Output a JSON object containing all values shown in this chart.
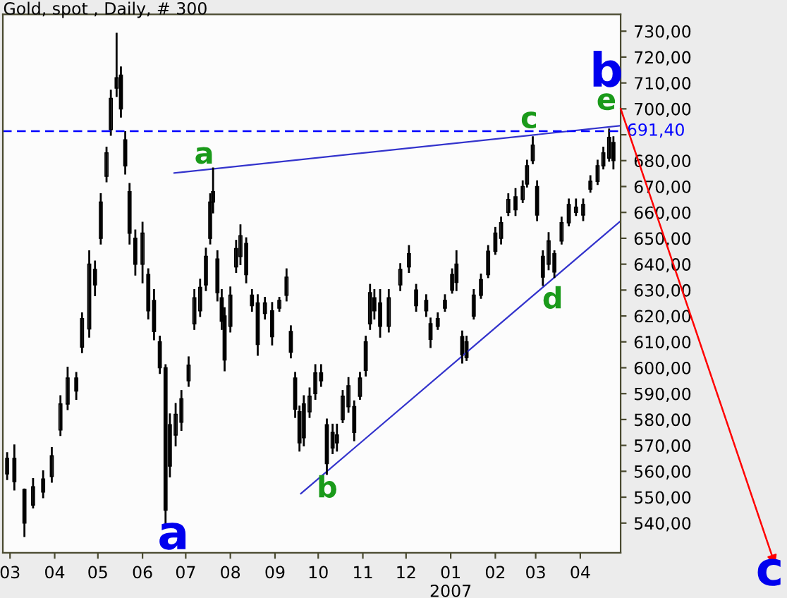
{
  "chart_data": {
    "type": "candlestick",
    "title": "Gold, spot , Daily, # 300",
    "color": "#000000",
    "x": [
      "2006-02-27",
      "2006-03-04",
      "2006-03-11",
      "2006-03-17",
      "2006-03-24",
      "2006-03-30",
      "2006-04-05",
      "2006-04-10",
      "2006-04-16",
      "2006-04-20",
      "2006-04-25",
      "2006-04-29",
      "2006-05-03",
      "2006-05-07",
      "2006-05-10",
      "2006-05-14",
      "2006-05-17",
      "2006-05-20",
      "2006-05-23",
      "2006-05-27",
      "2006-06-01",
      "2006-06-05",
      "2006-06-09",
      "2006-06-13",
      "2006-06-17",
      "2006-06-20",
      "2006-06-24",
      "2006-06-28",
      "2006-07-03",
      "2006-07-07",
      "2006-07-11",
      "2006-07-15",
      "2006-07-18",
      "2006-07-20",
      "2006-07-23",
      "2006-07-26",
      "2006-07-28",
      "2006-08-01",
      "2006-08-05",
      "2006-08-08",
      "2006-08-12",
      "2006-08-16",
      "2006-08-20",
      "2006-08-25",
      "2006-08-30",
      "2006-09-04",
      "2006-09-09",
      "2006-09-12",
      "2006-09-15",
      "2006-09-18",
      "2006-09-21",
      "2006-09-25",
      "2006-09-29",
      "2006-10-03",
      "2006-10-07",
      "2006-10-11",
      "2006-10-14",
      "2006-10-18",
      "2006-10-22",
      "2006-10-26",
      "2006-10-30",
      "2006-11-03",
      "2006-11-06",
      "2006-11-09",
      "2006-11-13",
      "2006-11-19",
      "2006-11-27",
      "2006-12-03",
      "2006-12-08",
      "2006-12-15",
      "2006-12-18",
      "2006-12-23",
      "2006-12-28",
      "2007-01-02",
      "2007-01-05",
      "2007-01-09",
      "2007-01-12",
      "2007-01-17",
      "2007-01-22",
      "2007-01-27",
      "2007-02-01",
      "2007-02-05",
      "2007-02-10",
      "2007-02-15",
      "2007-02-20",
      "2007-02-23",
      "2007-02-27",
      "2007-03-02",
      "2007-03-06",
      "2007-03-10",
      "2007-03-14",
      "2007-03-19",
      "2007-03-24",
      "2007-03-29",
      "2007-04-03",
      "2007-04-08",
      "2007-04-13",
      "2007-04-17",
      "2007-04-21",
      "2007-04-24"
    ],
    "ohlc": [
      [
        559,
        567,
        557,
        565
      ],
      [
        565,
        570,
        553,
        556
      ],
      [
        553,
        553,
        535,
        540
      ],
      [
        547,
        557,
        546,
        554
      ],
      [
        552,
        560,
        550,
        557
      ],
      [
        558,
        569,
        556,
        566
      ],
      [
        576,
        589,
        574,
        586
      ],
      [
        586,
        600,
        584,
        596
      ],
      [
        596,
        598,
        588,
        591
      ],
      [
        608,
        621,
        606,
        619
      ],
      [
        615,
        645,
        612,
        640
      ],
      [
        638,
        641,
        628,
        632
      ],
      [
        650,
        667,
        648,
        664
      ],
      [
        674,
        685,
        672,
        683
      ],
      [
        692,
        707,
        690,
        704
      ],
      [
        708,
        729,
        705,
        712
      ],
      [
        713,
        716,
        697,
        700
      ],
      [
        688,
        691,
        675,
        678
      ],
      [
        668,
        671,
        648,
        652
      ],
      [
        650,
        653,
        636,
        640
      ],
      [
        640,
        656,
        633,
        652
      ],
      [
        636,
        638,
        619,
        622
      ],
      [
        626,
        630,
        611,
        614
      ],
      [
        610,
        612,
        598,
        600
      ],
      [
        600,
        601,
        540,
        545
      ],
      [
        562,
        582,
        558,
        578
      ],
      [
        574,
        586,
        570,
        582
      ],
      [
        579,
        591,
        576,
        588
      ],
      [
        595,
        604,
        593,
        601
      ],
      [
        617,
        630,
        615,
        627
      ],
      [
        622,
        634,
        620,
        631
      ],
      [
        632,
        646,
        630,
        643
      ],
      [
        650,
        667,
        648,
        664
      ],
      [
        664,
        677,
        660,
        668
      ],
      [
        642,
        645,
        626,
        629
      ],
      [
        627,
        630,
        615,
        618
      ],
      [
        620,
        623,
        599,
        603
      ],
      [
        616,
        631,
        614,
        628
      ],
      [
        639,
        649,
        637,
        646
      ],
      [
        643,
        655,
        640,
        651
      ],
      [
        648,
        650,
        633,
        636
      ],
      [
        628,
        630,
        622,
        624
      ],
      [
        625,
        628,
        605,
        609
      ],
      [
        621,
        627,
        619,
        625
      ],
      [
        622,
        625,
        609,
        612
      ],
      [
        623,
        627,
        622,
        626
      ],
      [
        628,
        638,
        626,
        635
      ],
      [
        614,
        616,
        604,
        606
      ],
      [
        596,
        598,
        581,
        584
      ],
      [
        583,
        585,
        568,
        571
      ],
      [
        573,
        589,
        570,
        586
      ],
      [
        583,
        592,
        581,
        589
      ],
      [
        590,
        601,
        588,
        598
      ],
      [
        598,
        601,
        593,
        595
      ],
      [
        578,
        580,
        559,
        563
      ],
      [
        569,
        578,
        567,
        575
      ],
      [
        571,
        578,
        568,
        574
      ],
      [
        580,
        591,
        579,
        589
      ],
      [
        585,
        596,
        583,
        593
      ],
      [
        585,
        587,
        572,
        575
      ],
      [
        589,
        598,
        588,
        596
      ],
      [
        599,
        612,
        597,
        610
      ],
      [
        617,
        632,
        615,
        629
      ],
      [
        627,
        630,
        619,
        622
      ],
      [
        625,
        630,
        612,
        616
      ],
      [
        616,
        630,
        614,
        627
      ],
      [
        632,
        640,
        630,
        638
      ],
      [
        639,
        647,
        637,
        644
      ],
      [
        630,
        632,
        622,
        624
      ],
      [
        626,
        628,
        620,
        622
      ],
      [
        617,
        619,
        608,
        611
      ],
      [
        616,
        621,
        615,
        619
      ],
      [
        623,
        628,
        622,
        626
      ],
      [
        630,
        638,
        629,
        636
      ],
      [
        640,
        645,
        630,
        633
      ],
      [
        612,
        614,
        602,
        605
      ],
      [
        604,
        612,
        603,
        610
      ],
      [
        620,
        630,
        619,
        628
      ],
      [
        628,
        636,
        627,
        634
      ],
      [
        636,
        647,
        635,
        645
      ],
      [
        645,
        654,
        644,
        652
      ],
      [
        650,
        658,
        648,
        656
      ],
      [
        660,
        667,
        659,
        665
      ],
      [
        666,
        669,
        659,
        661
      ],
      [
        665,
        672,
        664,
        670
      ],
      [
        671,
        680,
        670,
        678
      ],
      [
        680,
        689,
        679,
        686
      ],
      [
        670,
        672,
        657,
        659
      ],
      [
        643,
        645,
        632,
        635
      ],
      [
        640,
        652,
        638,
        649
      ],
      [
        644,
        645,
        635,
        637
      ],
      [
        649,
        658,
        648,
        656
      ],
      [
        656,
        665,
        655,
        663
      ],
      [
        660,
        665,
        659,
        662
      ],
      [
        659,
        665,
        657,
        663
      ],
      [
        669,
        674,
        668,
        672
      ],
      [
        672,
        680,
        671,
        678
      ],
      [
        678,
        685,
        677,
        683
      ],
      [
        681,
        692,
        680,
        689
      ],
      [
        687,
        689,
        677,
        680
      ]
    ],
    "series": [
      {
        "type": "line",
        "color": "#3333cc",
        "x": [
          "2006-06-23",
          "2007-04-29"
        ],
        "values": [
          675.2,
          693.5
        ]
      },
      {
        "type": "line",
        "color": "#3333cc",
        "x": [
          "2006-09-19",
          "2007-04-29"
        ],
        "values": [
          551.4,
          656.7
        ]
      }
    ],
    "ref_lines": [
      {
        "axis": "y",
        "value": 691.4,
        "label": "691,40",
        "color": "#0000ff",
        "line_style": "dashed"
      }
    ],
    "annotations": [
      "a",
      "a",
      "b",
      "c",
      "d",
      "e",
      "b",
      "c"
    ],
    "xlim": [
      "2006-02-24",
      "2007-04-29"
    ],
    "ylim": [
      528.5,
      736.5
    ],
    "xticks": [
      {
        "value": "2006-03-01",
        "label": "03"
      },
      {
        "value": "2006-04-01",
        "label": "04"
      },
      {
        "value": "2006-05-01",
        "label": "05"
      },
      {
        "value": "2006-06-01",
        "label": "06"
      },
      {
        "value": "2006-07-01",
        "label": "07"
      },
      {
        "value": "2006-08-01",
        "label": "08"
      },
      {
        "value": "2006-09-01",
        "label": "09"
      },
      {
        "value": "2006-10-01",
        "label": "10"
      },
      {
        "value": "2006-11-01",
        "label": "11"
      },
      {
        "value": "2006-12-01",
        "label": "12"
      },
      {
        "value": "2007-01-01",
        "label": "01\n2007"
      },
      {
        "value": "2007-02-01",
        "label": "02"
      },
      {
        "value": "2007-03-01",
        "label": "03"
      },
      {
        "value": "2007-04-01",
        "label": "04"
      }
    ],
    "yticks": [
      {
        "value": 540,
        "label": "540,00"
      },
      {
        "value": 550,
        "label": "550,00"
      },
      {
        "value": 560,
        "label": "560,00"
      },
      {
        "value": 570,
        "label": "570,00"
      },
      {
        "value": 580,
        "label": "580,00"
      },
      {
        "value": 590,
        "label": "590,00"
      },
      {
        "value": 600,
        "label": "600,00"
      },
      {
        "value": 610,
        "label": "610,00"
      },
      {
        "value": 620,
        "label": "620,00"
      },
      {
        "value": 630,
        "label": "630,00"
      },
      {
        "value": 640,
        "label": "640,00"
      },
      {
        "value": 650,
        "label": "650,00"
      },
      {
        "value": 660,
        "label": "660,00"
      },
      {
        "value": 670,
        "label": "670,00"
      },
      {
        "value": 680,
        "label": "680,00"
      },
      {
        "value": 690,
        "label": null
      },
      {
        "value": 700,
        "label": "700,00"
      },
      {
        "value": 710,
        "label": "710,00"
      },
      {
        "value": 720,
        "label": "720,00"
      },
      {
        "value": 730,
        "label": "730,00"
      }
    ],
    "grid": false
  }
}
